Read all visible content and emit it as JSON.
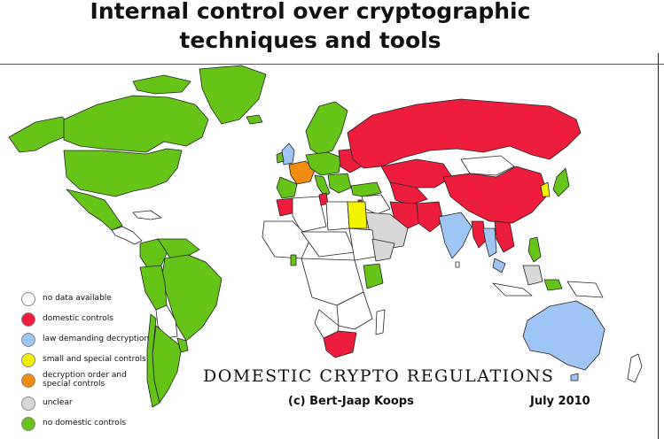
{
  "title": {
    "line1": "Internal control over cryptographic",
    "line2": "techniques and tools"
  },
  "legend": [
    {
      "key": "none",
      "label": "no data available",
      "color": "#ffffff"
    },
    {
      "key": "domestic",
      "label": "domestic controls",
      "color": "#ee1d3c"
    },
    {
      "key": "law",
      "label": "law demanding decryption",
      "color": "#9fc5f4"
    },
    {
      "key": "small",
      "label": "small and special controls",
      "color": "#f5f200"
    },
    {
      "key": "order",
      "label": "decryption order and\nspecial controls",
      "color": "#f28c10"
    },
    {
      "key": "unclear",
      "label": "unclear",
      "color": "#d8d8d8"
    },
    {
      "key": "nocontrols",
      "label": "no domestic controls",
      "color": "#66c419"
    }
  ],
  "banner": "DOMESTIC CRYPTO REGULATIONS",
  "credit": "(c) Bert-Jaap Koops",
  "date": "July 2010",
  "colors": {
    "ocean": "#ffffff",
    "border": "#222222"
  }
}
